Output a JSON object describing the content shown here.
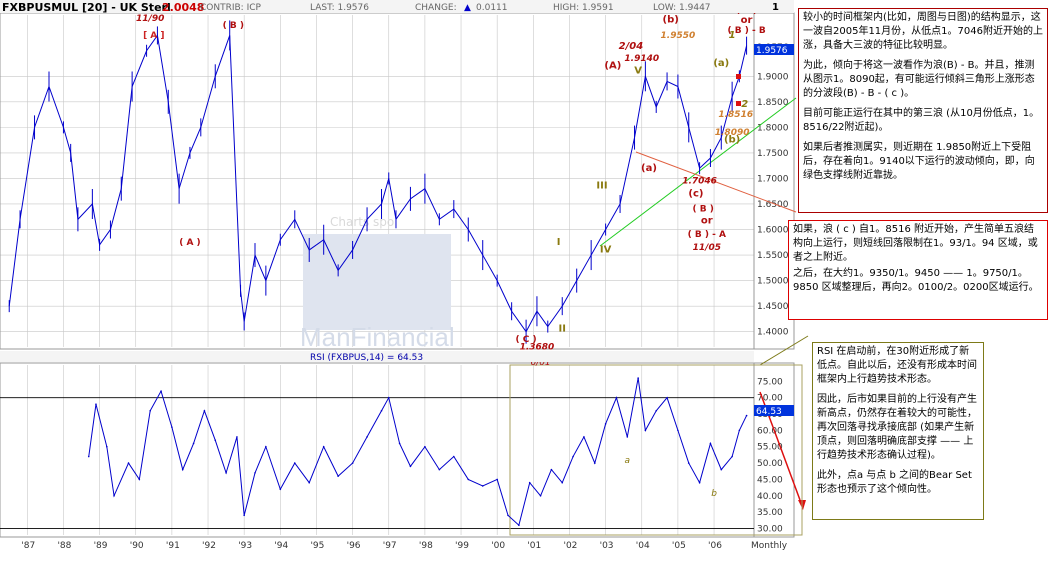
{
  "header": {
    "symbol": "FXBPUSMUL [20] - UK Sterl",
    "top_value": "2.0048",
    "contrib": "CONTRIB: ICP",
    "last": "LAST: 1.9576",
    "change_label": "CHANGE:",
    "change_value": "0.0111",
    "high": "HIGH: 1.9591",
    "low": "LOW: 1.9447",
    "corner": "1"
  },
  "rsi_header": "RSI (FXBPUS,14) = 64.53",
  "price_tag": "1.9576",
  "rsi_tag": "64.53",
  "watermark": {
    "sub": "Charts spo",
    "brand": "ManFinancial"
  },
  "colors": {
    "price": "#0000cc",
    "grid": "#c8c8c8",
    "wave_red": "#b01010",
    "wave_olive": "#8a7a10",
    "green_line": "#22cc22",
    "red_line": "#e06040",
    "box_olive": "#7d7a18"
  },
  "chart_data": [
    {
      "type": "line",
      "title": "FXBPUSMUL [20] - UK Sterl",
      "yaxis_ticks": [
        "1.9576",
        "1.9000",
        "1.8500",
        "1.8000",
        "1.7500",
        "1.7000",
        "1.6500",
        "1.6000",
        "1.5500",
        "1.5000",
        "1.4500",
        "1.4000"
      ],
      "ylim": [
        1.37,
        2.02
      ],
      "xaxis_ticks": [
        "'87",
        "'88",
        "'89",
        "'90",
        "'91",
        "'92",
        "'93",
        "'94",
        "'95",
        "'96",
        "'97",
        "'98",
        "'99",
        "'00",
        "'01",
        "'02",
        "'03",
        "'04",
        "'05",
        "'06",
        "Monthly"
      ],
      "x": [
        1986.5,
        1986.8,
        1987.2,
        1987.6,
        1988.0,
        1988.2,
        1988.4,
        1988.8,
        1989.0,
        1989.3,
        1989.6,
        1989.9,
        1990.3,
        1990.6,
        1990.9,
        1991.2,
        1991.5,
        1991.8,
        1992.2,
        1992.6,
        1992.9,
        1993.0,
        1993.3,
        1993.6,
        1994.0,
        1994.4,
        1994.8,
        1995.2,
        1995.6,
        1996.0,
        1996.4,
        1996.8,
        1997.0,
        1997.2,
        1997.6,
        1998.0,
        1998.4,
        1998.8,
        1999.2,
        1999.6,
        2000.0,
        2000.4,
        2000.8,
        2001.1,
        2001.4,
        2001.8,
        2002.2,
        2002.6,
        2003.0,
        2003.4,
        2003.8,
        2004.1,
        2004.4,
        2004.7,
        2005.0,
        2005.3,
        2005.6,
        2005.9,
        2006.2,
        2006.5,
        2006.7,
        2006.9
      ],
      "values": [
        1.45,
        1.62,
        1.8,
        1.88,
        1.8,
        1.75,
        1.62,
        1.65,
        1.57,
        1.6,
        1.68,
        1.88,
        1.95,
        1.98,
        1.85,
        1.68,
        1.75,
        1.8,
        1.9,
        1.98,
        1.48,
        1.42,
        1.55,
        1.5,
        1.58,
        1.62,
        1.56,
        1.58,
        1.52,
        1.56,
        1.62,
        1.65,
        1.7,
        1.62,
        1.66,
        1.68,
        1.62,
        1.64,
        1.6,
        1.55,
        1.5,
        1.44,
        1.4,
        1.44,
        1.41,
        1.45,
        1.5,
        1.55,
        1.6,
        1.65,
        1.78,
        1.9,
        1.84,
        1.89,
        1.88,
        1.8,
        1.72,
        1.74,
        1.78,
        1.86,
        1.9,
        1.96
      ],
      "annotations": [
        {
          "text": "[ A ]",
          "x": 1990.5,
          "y": 1.975,
          "color": "#cc2222"
        },
        {
          "text": "11/90",
          "x": 1990.4,
          "y": 2.008,
          "color": "#b01010"
        },
        {
          "text": "( B )",
          "x": 1992.7,
          "y": 1.995,
          "color": "#b01010"
        },
        {
          "text": "( A )",
          "x": 1991.5,
          "y": 1.57,
          "color": "#b01010"
        },
        {
          "text": "( C )",
          "x": 2000.8,
          "y": 1.38,
          "color": "#b01010"
        },
        {
          "text": "1.3680",
          "x": 2001.1,
          "y": 1.365,
          "color": "#b01010"
        },
        {
          "text": "I",
          "x": 2001.7,
          "y": 1.57,
          "color": "#8a7a10"
        },
        {
          "text": "II",
          "x": 2001.8,
          "y": 1.4,
          "color": "#8a7a10"
        },
        {
          "text": "III",
          "x": 2002.9,
          "y": 1.68,
          "color": "#8a7a10"
        },
        {
          "text": "IV",
          "x": 2003.0,
          "y": 1.555,
          "color": "#8a7a10"
        },
        {
          "text": "V",
          "x": 2003.9,
          "y": 1.905,
          "color": "#8a7a10"
        },
        {
          "text": "(A)",
          "x": 2003.2,
          "y": 1.915,
          "color": "#b01010"
        },
        {
          "text": "2/04",
          "x": 2003.7,
          "y": 1.953,
          "color": "#b01010"
        },
        {
          "text": "1.9140",
          "x": 2004.0,
          "y": 1.93,
          "color": "#b01010"
        },
        {
          "text": "(b)",
          "x": 2004.8,
          "y": 2.005,
          "color": "#b01010"
        },
        {
          "text": "1.9550",
          "x": 2005.0,
          "y": 1.975,
          "color": "#d08030"
        },
        {
          "text": "(a)",
          "x": 2004.2,
          "y": 1.715,
          "color": "#b01010"
        },
        {
          "text": "1.7046",
          "x": 2005.6,
          "y": 1.69,
          "color": "#b01010"
        },
        {
          "text": "(c)",
          "x": 2005.5,
          "y": 1.665,
          "color": "#b01010"
        },
        {
          "text": "( B )",
          "x": 2005.7,
          "y": 1.635,
          "color": "#b01010"
        },
        {
          "text": "or",
          "x": 2005.8,
          "y": 1.612,
          "color": "#b01010"
        },
        {
          "text": "( B ) - A",
          "x": 2005.8,
          "y": 1.585,
          "color": "#b01010"
        },
        {
          "text": "11/05",
          "x": 2005.8,
          "y": 1.56,
          "color": "#b01010"
        },
        {
          "text": "(a)",
          "x": 2006.2,
          "y": 1.92,
          "color": "#8a7a10"
        },
        {
          "text": "1",
          "x": 2006.5,
          "y": 1.975,
          "color": "#8a7a10"
        },
        {
          "text": "2",
          "x": 2006.85,
          "y": 1.84,
          "color": "#8a7a10"
        },
        {
          "text": "1.8516",
          "x": 2006.6,
          "y": 1.82,
          "color": "#d08030"
        },
        {
          "text": "1.8090",
          "x": 2006.5,
          "y": 1.785,
          "color": "#d08030"
        },
        {
          "text": "(b)",
          "x": 2006.5,
          "y": 1.77,
          "color": "#8a7a10"
        },
        {
          "text": "( C )",
          "x": 2006.9,
          "y": 2.024,
          "color": "#b01010"
        },
        {
          "text": "or",
          "x": 2006.9,
          "y": 2.004,
          "color": "#b01010"
        },
        {
          "text": "( B ) - B",
          "x": 2006.9,
          "y": 1.985,
          "color": "#b01010"
        }
      ]
    },
    {
      "type": "line",
      "title": "RSI (FXBPUS,14) = 64.53",
      "yaxis_ticks": [
        "75.00",
        "70.00",
        "65.00",
        "60.00",
        "55.00",
        "50.00",
        "45.00",
        "40.00",
        "35.00",
        "30.00"
      ],
      "ylim": [
        28,
        80
      ],
      "reference_lines": [
        70,
        30
      ],
      "x": [
        1988.7,
        1988.9,
        1989.2,
        1989.4,
        1989.8,
        1990.1,
        1990.4,
        1990.7,
        1991.0,
        1991.3,
        1991.6,
        1991.9,
        1992.2,
        1992.5,
        1992.8,
        1993.0,
        1993.3,
        1993.6,
        1994.0,
        1994.4,
        1994.8,
        1995.2,
        1995.6,
        1996.0,
        1996.4,
        1996.8,
        1997.0,
        1997.3,
        1997.6,
        1998.0,
        1998.4,
        1998.8,
        1999.2,
        1999.6,
        2000.0,
        2000.3,
        2000.6,
        2000.9,
        2001.2,
        2001.5,
        2001.8,
        2002.1,
        2002.4,
        2002.7,
        2003.0,
        2003.3,
        2003.6,
        2003.9,
        2004.1,
        2004.4,
        2004.7,
        2005.0,
        2005.3,
        2005.6,
        2005.9,
        2006.2,
        2006.5,
        2006.7,
        2006.9
      ],
      "values": [
        52,
        68,
        55,
        40,
        50,
        45,
        66,
        72,
        61,
        48,
        56,
        66,
        57,
        47,
        58,
        34,
        47,
        55,
        42,
        50,
        44,
        55,
        46,
        50,
        58,
        66,
        70,
        56,
        49,
        55,
        48,
        52,
        45,
        43,
        45,
        34,
        31,
        44,
        40,
        48,
        44,
        52,
        58,
        50,
        62,
        70,
        58,
        76,
        60,
        66,
        70,
        60,
        50,
        44,
        56,
        48,
        52,
        60,
        64.53
      ],
      "annotations": [
        {
          "text": "6/01",
          "x": 2001.2,
          "y": 80,
          "color": "#b01010"
        },
        {
          "text": "a",
          "x": 2003.6,
          "y": 50,
          "color": "#8a7a10"
        },
        {
          "text": "b",
          "x": 2006.0,
          "y": 40,
          "color": "#8a7a10"
        }
      ]
    }
  ],
  "notes": {
    "note1": [
      "较小的时间框架内(比如，周图与日图)的结构显示，这一波自2005年11月份，从低点1。7046附近开始的上涨，具备大三波的特征比较明显。",
      "为此，倾向于将这一波看作为浪(B) - B。并且，推测从图示1。8090起，有可能运行倾斜三角形上涨形态的分波段(B) - B - ( c )。",
      "目前可能正运行在其中的第三浪 (从10月份低点，1。8516/22附近起)。",
      "如果后者推测属实，则近期在 1.9850附近上下受阻后，存在着向1。9140以下运行的波动倾向，即，向绿色支撑线附近靠拢。"
    ],
    "note2": [
      "如果，浪 ( c ) 自1。8516 附近开始，产生简单五浪结构向上运行，则短线回落限制在1。93/1。94 区域，或者之上附近。",
      "之后，在大约1。9350/1。9450 —— 1。9750/1。9850 区域整理后，再向2。0100/2。0200区域运行。"
    ],
    "note3": [
      "RSI 在启动前，在30附近形成了新低点。自此以后，还没有形成本时间框架内上行趋势技术形态。",
      "因此，后市如果目前的上行没有产生新高点，仍然存在着较大的可能性，再次回落寻找承接底部 (如果产生新顶点，则回落明确底部支撑 —— 上行趋势技术形态确认过程)。",
      "此外，点a 与点 b 之间的Bear Set 形态也预示了这个倾向性。"
    ]
  }
}
